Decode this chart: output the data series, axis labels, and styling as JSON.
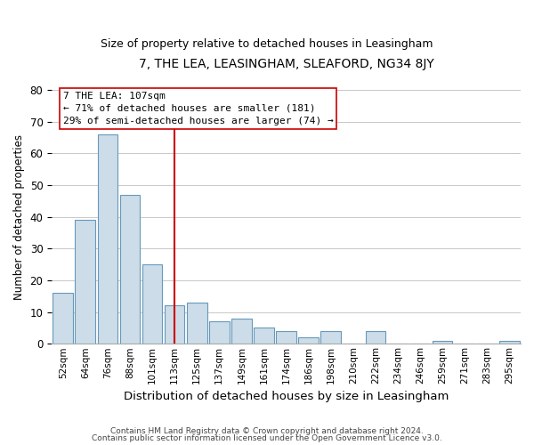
{
  "title": "7, THE LEA, LEASINGHAM, SLEAFORD, NG34 8JY",
  "subtitle": "Size of property relative to detached houses in Leasingham",
  "xlabel": "Distribution of detached houses by size in Leasingham",
  "ylabel": "Number of detached properties",
  "bar_labels": [
    "52sqm",
    "64sqm",
    "76sqm",
    "88sqm",
    "101sqm",
    "113sqm",
    "125sqm",
    "137sqm",
    "149sqm",
    "161sqm",
    "174sqm",
    "186sqm",
    "198sqm",
    "210sqm",
    "222sqm",
    "234sqm",
    "246sqm",
    "259sqm",
    "271sqm",
    "283sqm",
    "295sqm"
  ],
  "bar_values": [
    16,
    39,
    66,
    47,
    25,
    12,
    13,
    7,
    8,
    5,
    4,
    2,
    4,
    0,
    4,
    0,
    0,
    1,
    0,
    0,
    1
  ],
  "bar_color": "#ccdce8",
  "bar_edge_color": "#6699bb",
  "vline_x": 5,
  "vline_color": "#cc0000",
  "annotation_title": "7 THE LEA: 107sqm",
  "annotation_line1": "← 71% of detached houses are smaller (181)",
  "annotation_line2": "29% of semi-detached houses are larger (74) →",
  "ylim": [
    0,
    80
  ],
  "yticks": [
    0,
    10,
    20,
    30,
    40,
    50,
    60,
    70,
    80
  ],
  "footer1": "Contains HM Land Registry data © Crown copyright and database right 2024.",
  "footer2": "Contains public sector information licensed under the Open Government Licence v3.0.",
  "bg_color": "#ffffff",
  "grid_color": "#c8c8c8"
}
